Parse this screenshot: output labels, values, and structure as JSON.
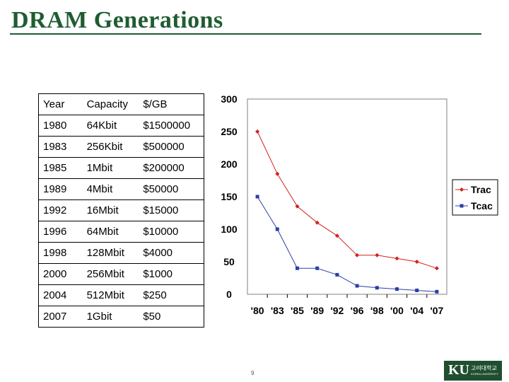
{
  "slide": {
    "title": "DRAM Generations",
    "page_number": "9",
    "logo": {
      "mark": "KU",
      "name_korean": "고려대학교",
      "name_english": "KOREA UNIVERSITY"
    }
  },
  "table": {
    "headers": [
      "Year",
      "Capacity",
      "$/GB"
    ],
    "rows": [
      [
        "1980",
        "64Kbit",
        "$1500000"
      ],
      [
        "1983",
        "256Kbit",
        "$500000"
      ],
      [
        "1985",
        "1Mbit",
        "$200000"
      ],
      [
        "1989",
        "4Mbit",
        "$50000"
      ],
      [
        "1992",
        "16Mbit",
        "$15000"
      ],
      [
        "1996",
        "64Mbit",
        "$10000"
      ],
      [
        "1998",
        "128Mbit",
        "$4000"
      ],
      [
        "2000",
        "256Mbit",
        "$1000"
      ],
      [
        "2004",
        "512Mbit",
        "$250"
      ],
      [
        "2007",
        "1Gbit",
        "$50"
      ]
    ]
  },
  "chart_data": {
    "type": "line",
    "categories": [
      "'80",
      "'83",
      "'85",
      "'89",
      "'92",
      "'96",
      "'98",
      "'00",
      "'04",
      "'07"
    ],
    "series": [
      {
        "name": "Trac",
        "values": [
          250,
          185,
          135,
          110,
          90,
          60,
          60,
          55,
          50,
          40
        ],
        "color": "#d42020",
        "marker": "diamond"
      },
      {
        "name": "Tcac",
        "values": [
          150,
          100,
          40,
          40,
          30,
          13,
          10,
          8,
          6,
          4
        ],
        "color": "#2a3ea8",
        "marker": "square"
      }
    ],
    "yticks": [
      0,
      50,
      100,
      150,
      200,
      250,
      300
    ],
    "ylim": [
      0,
      300
    ],
    "title": "",
    "xlabel": "",
    "ylabel": "",
    "grid": false,
    "legend": "right"
  }
}
